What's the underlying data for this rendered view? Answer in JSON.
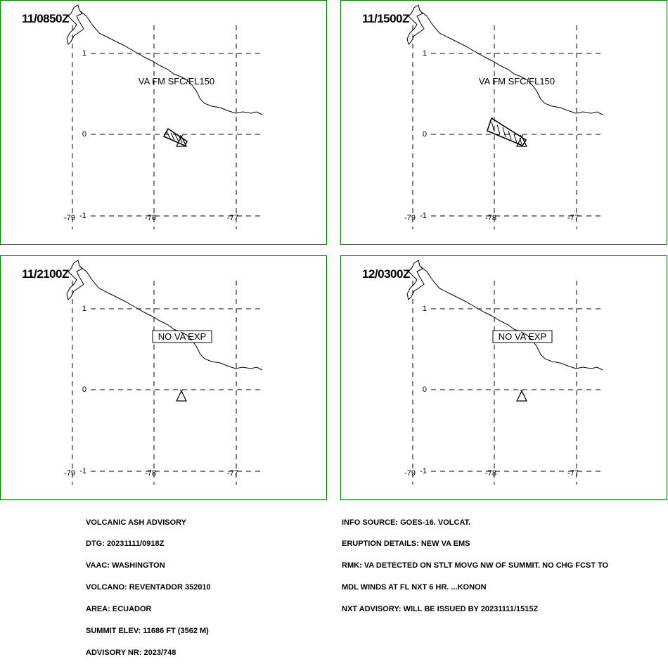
{
  "panels": [
    {
      "time": "11/0850Z",
      "label": "VA FM SFC/FL150",
      "label_boxed": false,
      "ash": "small"
    },
    {
      "time": "11/1500Z",
      "label": "VA FM SFC/FL150",
      "label_boxed": false,
      "ash": "large"
    },
    {
      "time": "11/2100Z",
      "label": "NO VA EXP",
      "label_boxed": true,
      "ash": "none"
    },
    {
      "time": "12/0300Z",
      "label": "NO VA EXP",
      "label_boxed": true,
      "ash": "none"
    }
  ],
  "grid": {
    "lat_labels": [
      "1",
      "0",
      "-1"
    ],
    "lon_labels": [
      "-79",
      "-78",
      "-77"
    ]
  },
  "colors": {
    "panel_border": "#008000",
    "lines": "#000000"
  },
  "advisory_left": [
    "VOLCANIC ASH ADVISORY",
    "DTG: 20231111/0918Z",
    "VAAC: WASHINGTON",
    "VOLCANO: REVENTADOR 352010",
    "AREA: ECUADOR",
    "SUMMIT ELEV: 11686 FT (3562 M)",
    "ADVISORY NR: 2023/748"
  ],
  "advisory_right": [
    "INFO SOURCE: GOES-16. VOLCAT.",
    "ERUPTION DETAILS: NEW VA EMS",
    "RMK: VA DETECTED ON STLT MOVG NW OF SUMMIT. NO CHG FCST TO",
    "MDL WINDS AT FL NXT 6 HR. ...KONON",
    "NXT ADVISORY: WILL BE ISSUED BY 20231111/1515Z"
  ]
}
